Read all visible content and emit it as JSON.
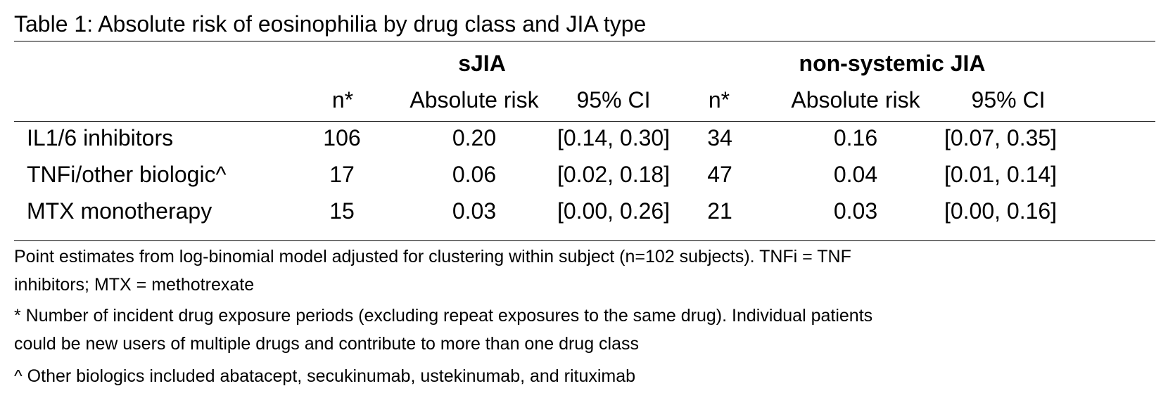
{
  "table": {
    "title": "Table 1: Absolute risk of eosinophilia by drug class and JIA type",
    "groups": [
      "sJIA",
      "non-systemic JIA"
    ],
    "columns": [
      "n*",
      "Absolute risk",
      "95% CI",
      "n*",
      "Absolute risk",
      "95% CI"
    ],
    "rows": [
      {
        "label": "IL1/6 inhibitors",
        "cells": [
          "106",
          "0.20",
          "[0.14, 0.30]",
          "34",
          "0.16",
          "[0.07, 0.35]"
        ]
      },
      {
        "label": "TNFi/other biologic^",
        "cells": [
          "17",
          "0.06",
          "[0.02, 0.18]",
          "47",
          "0.04",
          "[0.01, 0.14]"
        ]
      },
      {
        "label": "MTX monotherapy",
        "cells": [
          "15",
          "0.03",
          "[0.00, 0.26]",
          "21",
          "0.03",
          "[0.00, 0.16]"
        ]
      }
    ],
    "notes": [
      "Point estimates from log-binomial model adjusted for clustering within subject (n=102 subjects). TNFi = TNF",
      "inhibitors; MTX = methotrexate",
      "* Number of incident drug exposure periods (excluding repeat exposures to the same drug). Individual patients",
      "could be new users of multiple drugs and contribute to more than one drug class",
      "^ Other biologics included abatacept, secukinumab, ustekinumab, and rituximab"
    ]
  }
}
